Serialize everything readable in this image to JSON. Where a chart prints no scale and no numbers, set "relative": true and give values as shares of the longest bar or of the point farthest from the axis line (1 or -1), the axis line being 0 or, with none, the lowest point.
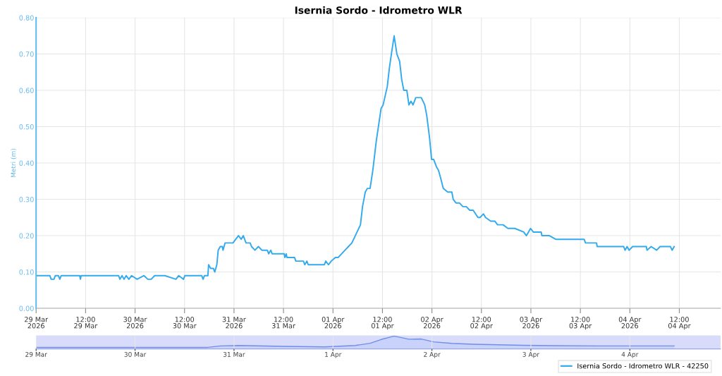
{
  "chart_data": [
    {
      "type": "line",
      "title": "Isernia Sordo - Idrometro WLR",
      "ylabel": "Metri (m)",
      "grid": true,
      "legend": "bottom right",
      "marker": "none",
      "line_style": "solid",
      "xlim": [
        "2026-03-29",
        "2026-04-04T22:00"
      ],
      "xticks": [
        {
          "value": "2026-03-29",
          "label": "29 Mar\n2026"
        },
        {
          "value": "2026-03-29T12:00",
          "label": "12:00\n29 Mar"
        },
        {
          "value": "2026-03-30",
          "label": "30 Mar\n2026"
        },
        {
          "value": "2026-03-30T12:00",
          "label": "12:00\n30 Mar"
        },
        {
          "value": "2026-03-31",
          "label": "31 Mar\n2026"
        },
        {
          "value": "2026-03-31T12:00",
          "label": "12:00\n31 Mar"
        },
        {
          "value": "2026-04-01",
          "label": "01 Apr\n2026"
        },
        {
          "value": "2026-04-01T12:00",
          "label": "12:00\n01 Apr"
        },
        {
          "value": "2026-04-02",
          "label": "02 Apr\n2026"
        },
        {
          "value": "2026-04-02T12:00",
          "label": "12:00\n02 Apr"
        },
        {
          "value": "2026-04-03",
          "label": "03 Apr\n2026"
        },
        {
          "value": "2026-04-03T12:00",
          "label": "12:00\n03 Apr"
        },
        {
          "value": "2026-04-04",
          "label": "04 Apr\n2026"
        },
        {
          "value": "2026-04-04T12:00",
          "label": "12:00\n04 Apr"
        }
      ],
      "ylim": [
        0,
        0.8
      ],
      "yticks": [
        {
          "value": 0,
          "label": "0.00"
        },
        {
          "value": 0.1,
          "label": "0.10"
        },
        {
          "value": 0.2,
          "label": "0.20"
        },
        {
          "value": 0.3,
          "label": "0.30"
        },
        {
          "value": 0.4,
          "label": "0.40"
        },
        {
          "value": 0.5,
          "label": "0.50"
        },
        {
          "value": 0.6,
          "label": "0.60"
        },
        {
          "value": 0.7,
          "label": "0.70"
        },
        {
          "value": 0.8,
          "label": "0.80"
        }
      ],
      "x": [
        "2026-03-29T00:00",
        "2026-03-29T03:20",
        "2026-03-29T03:40",
        "2026-03-29T04:20",
        "2026-03-29T04:40",
        "2026-03-29T05:25",
        "2026-03-29T05:45",
        "2026-03-29T06:05",
        "2026-03-29T10:35",
        "2026-03-29T10:45",
        "2026-03-29T10:55",
        "2026-03-29T20:00",
        "2026-03-29T20:20",
        "2026-03-29T20:50",
        "2026-03-29T21:20",
        "2026-03-29T21:50",
        "2026-03-29T22:30",
        "2026-03-29T23:10",
        "2026-03-30T00:30",
        "2026-03-30T02:10",
        "2026-03-30T03:05",
        "2026-03-30T03:55",
        "2026-03-30T04:45",
        "2026-03-30T07:15",
        "2026-03-30T09:55",
        "2026-03-30T10:35",
        "2026-03-30T11:45",
        "2026-03-30T12:05",
        "2026-03-30T16:10",
        "2026-03-30T16:30",
        "2026-03-30T16:50",
        "2026-03-30T17:40",
        "2026-03-30T17:50",
        "2026-03-30T18:20",
        "2026-03-30T19:00",
        "2026-03-30T19:20",
        "2026-03-30T19:50",
        "2026-03-30T20:10",
        "2026-03-30T20:40",
        "2026-03-30T21:10",
        "2026-03-30T21:20",
        "2026-03-30T21:50",
        "2026-03-30T23:45",
        "2026-03-31T00:25",
        "2026-03-31T01:05",
        "2026-03-31T01:45",
        "2026-03-31T02:15",
        "2026-03-31T02:55",
        "2026-03-31T03:55",
        "2026-03-31T04:15",
        "2026-03-31T05:05",
        "2026-03-31T05:55",
        "2026-03-31T06:45",
        "2026-03-31T08:05",
        "2026-03-31T08:25",
        "2026-03-31T08:55",
        "2026-03-31T09:15",
        "2026-03-31T12:10",
        "2026-03-31T12:20",
        "2026-03-31T12:40",
        "2026-03-31T12:50",
        "2026-03-31T14:40",
        "2026-03-31T15:00",
        "2026-03-31T16:50",
        "2026-03-31T17:10",
        "2026-03-31T17:40",
        "2026-03-31T18:00",
        "2026-03-31T21:55",
        "2026-03-31T22:15",
        "2026-03-31T22:55",
        "2026-03-31T23:35",
        "2026-04-01T00:35",
        "2026-04-01T01:15",
        "2026-04-01T02:05",
        "2026-04-01T02:55",
        "2026-04-01T03:45",
        "2026-04-01T04:35",
        "2026-04-01T05:25",
        "2026-04-01T06:40",
        "2026-04-01T07:10",
        "2026-04-01T07:50",
        "2026-04-01T08:20",
        "2026-04-01T09:00",
        "2026-04-01T09:40",
        "2026-04-01T10:30",
        "2026-04-01T11:40",
        "2026-04-01T12:10",
        "2026-04-01T13:10",
        "2026-04-01T13:40",
        "2026-04-01T14:10",
        "2026-04-01T14:50",
        "2026-04-01T15:30",
        "2026-04-01T16:10",
        "2026-04-01T16:40",
        "2026-04-01T17:10",
        "2026-04-01T17:55",
        "2026-04-01T18:25",
        "2026-04-01T18:55",
        "2026-04-01T19:25",
        "2026-04-01T20:05",
        "2026-04-01T21:25",
        "2026-04-01T22:15",
        "2026-04-01T22:45",
        "2026-04-01T23:25",
        "2026-04-01T23:55",
        "2026-04-02T00:25",
        "2026-04-02T01:05",
        "2026-04-02T01:35",
        "2026-04-02T02:05",
        "2026-04-02T02:45",
        "2026-04-02T03:50",
        "2026-04-02T04:50",
        "2026-04-02T05:10",
        "2026-04-02T05:50",
        "2026-04-02T06:40",
        "2026-04-02T07:30",
        "2026-04-02T08:20",
        "2026-04-02T09:10",
        "2026-04-02T10:00",
        "2026-04-02T11:10",
        "2026-04-02T11:40",
        "2026-04-02T12:30",
        "2026-04-02T13:00",
        "2026-04-02T14:15",
        "2026-04-02T15:15",
        "2026-04-02T15:55",
        "2026-04-02T17:15",
        "2026-04-02T18:25",
        "2026-04-02T20:05",
        "2026-04-02T22:15",
        "2026-04-02T22:55",
        "2026-04-02T23:25",
        "2026-04-02T23:55",
        "2026-04-03T00:35",
        "2026-04-03T02:30",
        "2026-04-03T02:40",
        "2026-04-03T04:30",
        "2026-04-03T06:00",
        "2026-04-03T12:55",
        "2026-04-03T13:15",
        "2026-04-03T15:55",
        "2026-04-03T16:05",
        "2026-04-03T22:30",
        "2026-04-03T22:50",
        "2026-04-03T23:20",
        "2026-04-03T23:50",
        "2026-04-04T00:40",
        "2026-04-04T04:00",
        "2026-04-04T04:10",
        "2026-04-04T05:10",
        "2026-04-04T06:30",
        "2026-04-04T07:20",
        "2026-04-04T09:50",
        "2026-04-04T10:15",
        "2026-04-04T10:45"
      ],
      "series": [
        {
          "name": "Isernia Sordo - Idrometro WLR - 42250",
          "color": "#33aaee",
          "values": [
            0.09,
            0.09,
            0.08,
            0.08,
            0.09,
            0.09,
            0.08,
            0.09,
            0.09,
            0.08,
            0.09,
            0.09,
            0.08,
            0.09,
            0.08,
            0.09,
            0.08,
            0.09,
            0.08,
            0.09,
            0.08,
            0.08,
            0.09,
            0.09,
            0.08,
            0.09,
            0.08,
            0.09,
            0.09,
            0.08,
            0.09,
            0.09,
            0.12,
            0.11,
            0.11,
            0.1,
            0.12,
            0.16,
            0.17,
            0.17,
            0.16,
            0.18,
            0.18,
            0.19,
            0.2,
            0.19,
            0.2,
            0.18,
            0.18,
            0.17,
            0.16,
            0.17,
            0.16,
            0.16,
            0.15,
            0.16,
            0.15,
            0.15,
            0.14,
            0.15,
            0.14,
            0.14,
            0.13,
            0.13,
            0.12,
            0.13,
            0.12,
            0.12,
            0.13,
            0.12,
            0.13,
            0.14,
            0.14,
            0.15,
            0.16,
            0.17,
            0.18,
            0.2,
            0.23,
            0.28,
            0.32,
            0.33,
            0.33,
            0.38,
            0.46,
            0.55,
            0.56,
            0.61,
            0.66,
            0.7,
            0.75,
            0.7,
            0.68,
            0.63,
            0.6,
            0.6,
            0.56,
            0.57,
            0.56,
            0.58,
            0.58,
            0.56,
            0.53,
            0.47,
            0.41,
            0.41,
            0.39,
            0.38,
            0.36,
            0.33,
            0.32,
            0.32,
            0.3,
            0.29,
            0.29,
            0.28,
            0.28,
            0.27,
            0.27,
            0.25,
            0.25,
            0.26,
            0.25,
            0.24,
            0.24,
            0.23,
            0.23,
            0.22,
            0.22,
            0.21,
            0.2,
            0.21,
            0.22,
            0.21,
            0.21,
            0.2,
            0.2,
            0.19,
            0.19,
            0.18,
            0.18,
            0.17,
            0.17,
            0.16,
            0.17,
            0.16,
            0.17,
            0.17,
            0.16,
            0.17,
            0.16,
            0.17,
            0.17,
            0.16,
            0.17
          ]
        }
      ]
    },
    {
      "type": "area",
      "relative": true,
      "grid": "x",
      "tick_labels": "x",
      "xlim": [
        "2026-03-29",
        "2026-04-04T22:00"
      ],
      "xticks": [
        {
          "value": "2026-03-29",
          "label": "29 Mar"
        },
        {
          "value": "2026-03-30",
          "label": "30 Mar"
        },
        {
          "value": "2026-03-31",
          "label": "31 Mar"
        },
        {
          "value": "2026-04-01",
          "label": "1 Apr"
        },
        {
          "value": "2026-04-02",
          "label": "2 Apr"
        },
        {
          "value": "2026-04-03",
          "label": "3 Apr"
        },
        {
          "value": "2026-04-04",
          "label": "4 Apr"
        }
      ],
      "x": [
        "2026-03-29T00:00",
        "2026-03-30T17:40",
        "2026-03-30T20:40",
        "2026-03-31T01:05",
        "2026-03-31T12:10",
        "2026-03-31T22:00",
        "2026-04-01T05:25",
        "2026-04-01T09:00",
        "2026-04-01T11:40",
        "2026-04-01T14:50",
        "2026-04-01T18:25",
        "2026-04-01T21:25",
        "2026-04-02T00:25",
        "2026-04-02T04:50",
        "2026-04-02T10:00",
        "2026-04-02T22:15",
        "2026-04-03T06:00",
        "2026-04-03T16:05",
        "2026-04-04T10:45"
      ],
      "series": [
        {
          "color": "#6f8fe6",
          "values": [
            0.12,
            0.12,
            0.23,
            0.27,
            0.2,
            0.16,
            0.27,
            0.44,
            0.73,
            1,
            0.75,
            0.77,
            0.55,
            0.43,
            0.36,
            0.28,
            0.25,
            0.23,
            0.23
          ]
        }
      ]
    }
  ]
}
